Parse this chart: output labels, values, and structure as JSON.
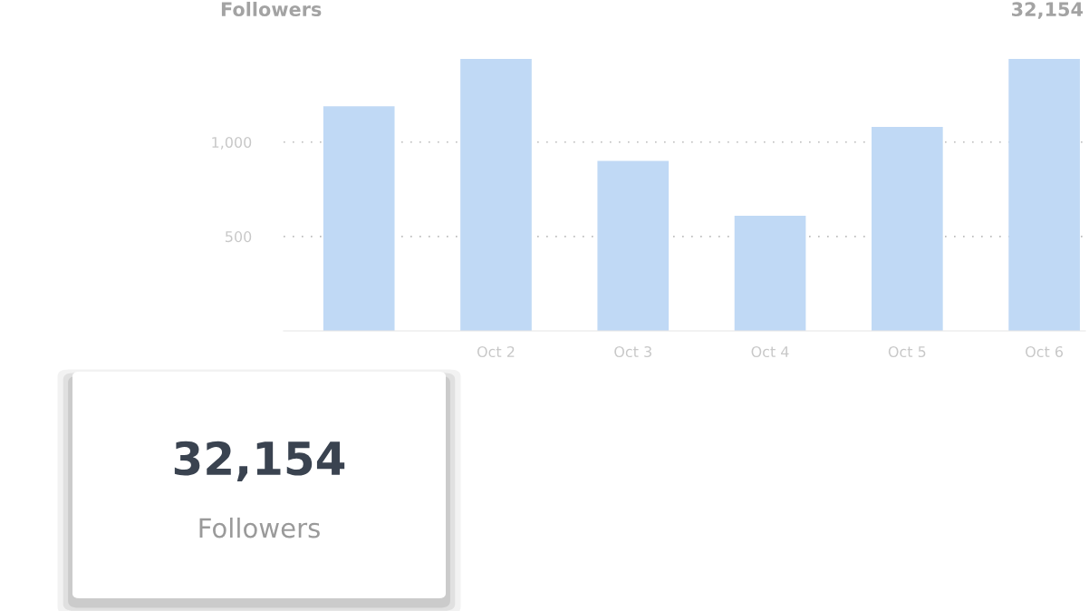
{
  "chart_data": [
    {
      "type": "bar",
      "title": "Followers",
      "annotations": [
        "32,154"
      ],
      "categories": [
        null,
        "Oct 2",
        "Oct 3",
        "Oct 4",
        "Oct 5",
        "Oct 6"
      ],
      "values": [
        1190,
        1440,
        900,
        610,
        1080,
        1440
      ],
      "color": "#c0d9f5",
      "ylim": [
        0,
        1450
      ],
      "yticks": [
        500,
        {
          "value": 1000,
          "label": "1,000"
        }
      ],
      "grid": "y",
      "line_style": "dotted"
    },
    {
      "type": "other",
      "annotations": [
        "32,154",
        "Followers"
      ]
    }
  ]
}
